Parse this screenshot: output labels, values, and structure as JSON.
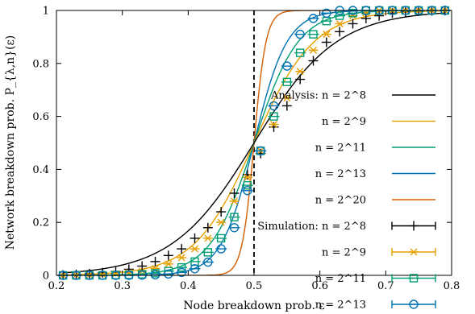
{
  "chart_data": {
    "type": "line",
    "title": "",
    "xlabel": "Node breakdown prob. ε",
    "ylabel": "Network breakdown prob. P_{λ,n}(ε)",
    "xlim": [
      0.2,
      0.8
    ],
    "ylim": [
      0,
      1
    ],
    "xticks": [
      "0.2",
      "0.3",
      "0.4",
      "0.5",
      "0.6",
      "0.7",
      "0.8"
    ],
    "yticks": [
      "0",
      "0.2",
      "0.4",
      "0.6",
      "0.8",
      "1"
    ],
    "vline": 0.5,
    "grid": false,
    "legend_position": "right",
    "series": [
      {
        "name": "Analysis: n = 2^8",
        "kind": "line",
        "color": "#000000",
        "k": 16
      },
      {
        "name": "n = 2^9",
        "kind": "line",
        "color": "#e69f00",
        "k": 22
      },
      {
        "name": "n = 2^11",
        "kind": "line",
        "color": "#009e73",
        "k": 30
      },
      {
        "name": "n = 2^13",
        "kind": "line",
        "color": "#0072b2",
        "k": 40
      },
      {
        "name": "n = 2^20",
        "kind": "line",
        "color": "#d55e00",
        "k": 110
      },
      {
        "name": "Simulation: n = 2^8",
        "kind": "points",
        "marker": "plus",
        "color": "#000000",
        "x": [
          0.21,
          0.23,
          0.25,
          0.27,
          0.29,
          0.31,
          0.33,
          0.35,
          0.37,
          0.39,
          0.41,
          0.43,
          0.45,
          0.47,
          0.49,
          0.51,
          0.53,
          0.55,
          0.57,
          0.59,
          0.61,
          0.63,
          0.65,
          0.67,
          0.69,
          0.71,
          0.73,
          0.75,
          0.77,
          0.79
        ],
        "y": [
          0.001,
          0.003,
          0.006,
          0.01,
          0.015,
          0.023,
          0.035,
          0.052,
          0.075,
          0.1,
          0.14,
          0.18,
          0.24,
          0.31,
          0.38,
          0.46,
          0.56,
          0.64,
          0.74,
          0.81,
          0.88,
          0.92,
          0.95,
          0.97,
          0.98,
          0.99,
          0.995,
          0.998,
          0.999,
          1.0
        ]
      },
      {
        "name": "n = 2^9",
        "kind": "points",
        "marker": "cross",
        "color": "#e69f00",
        "x": [
          0.21,
          0.23,
          0.25,
          0.27,
          0.29,
          0.31,
          0.33,
          0.35,
          0.37,
          0.39,
          0.41,
          0.43,
          0.45,
          0.47,
          0.49,
          0.51,
          0.53,
          0.55,
          0.57,
          0.59,
          0.61,
          0.63,
          0.65,
          0.67,
          0.69,
          0.71,
          0.73,
          0.75,
          0.77,
          0.79
        ],
        "y": [
          0.0,
          0.001,
          0.002,
          0.003,
          0.006,
          0.01,
          0.016,
          0.026,
          0.043,
          0.067,
          0.1,
          0.14,
          0.2,
          0.28,
          0.37,
          0.47,
          0.57,
          0.67,
          0.77,
          0.85,
          0.91,
          0.95,
          0.98,
          0.99,
          1.0,
          1.0,
          1.0,
          1.0,
          1.0,
          1.0
        ]
      },
      {
        "name": "n = 2^11",
        "kind": "points",
        "marker": "square",
        "color": "#009e73",
        "x": [
          0.21,
          0.23,
          0.25,
          0.27,
          0.29,
          0.31,
          0.33,
          0.35,
          0.37,
          0.39,
          0.41,
          0.43,
          0.45,
          0.47,
          0.49,
          0.51,
          0.53,
          0.55,
          0.57,
          0.59,
          0.61,
          0.63,
          0.65,
          0.67,
          0.69,
          0.71,
          0.73,
          0.75,
          0.77,
          0.79
        ],
        "y": [
          0.0,
          0.0,
          0.0,
          0.0,
          0.001,
          0.002,
          0.004,
          0.008,
          0.016,
          0.03,
          0.052,
          0.087,
          0.14,
          0.22,
          0.34,
          0.47,
          0.6,
          0.73,
          0.84,
          0.91,
          0.96,
          0.98,
          0.99,
          1.0,
          1.0,
          1.0,
          1.0,
          1.0,
          1.0,
          1.0
        ]
      },
      {
        "name": "n = 2^13",
        "kind": "points",
        "marker": "circle",
        "color": "#0072b2",
        "x": [
          0.21,
          0.23,
          0.25,
          0.27,
          0.29,
          0.31,
          0.33,
          0.35,
          0.37,
          0.39,
          0.41,
          0.43,
          0.45,
          0.47,
          0.49,
          0.51,
          0.53,
          0.55,
          0.57,
          0.59,
          0.61,
          0.63,
          0.65,
          0.67,
          0.69,
          0.71,
          0.73,
          0.75,
          0.77,
          0.79
        ],
        "y": [
          0.0,
          0.0,
          0.0,
          0.0,
          0.0,
          0.0,
          0.001,
          0.002,
          0.005,
          0.011,
          0.025,
          0.05,
          0.1,
          0.18,
          0.32,
          0.47,
          0.64,
          0.79,
          0.91,
          0.97,
          0.99,
          1.0,
          1.0,
          1.0,
          1.0,
          1.0,
          1.0,
          1.0,
          1.0,
          1.0
        ]
      }
    ]
  }
}
